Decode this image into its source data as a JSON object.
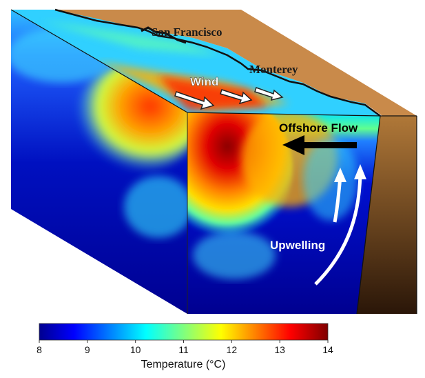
{
  "labels": {
    "city_north": "San Francisco",
    "city_south": "Monterey",
    "wind": "Wind",
    "offshore_flow": "Offshore Flow",
    "upwelling": "Upwelling"
  },
  "colorbar": {
    "title": "Temperature (°C)",
    "ticks": [
      "8",
      "9",
      "10",
      "11",
      "12",
      "13",
      "14"
    ],
    "colormap": "jet"
  },
  "colors": {
    "land": "#c98a4a",
    "land_shadow": "#5a3515",
    "cold_water": "#00008f",
    "warm_water": "#9b0000",
    "arrow_white": "#ffffff",
    "arrow_black": "#000000"
  }
}
